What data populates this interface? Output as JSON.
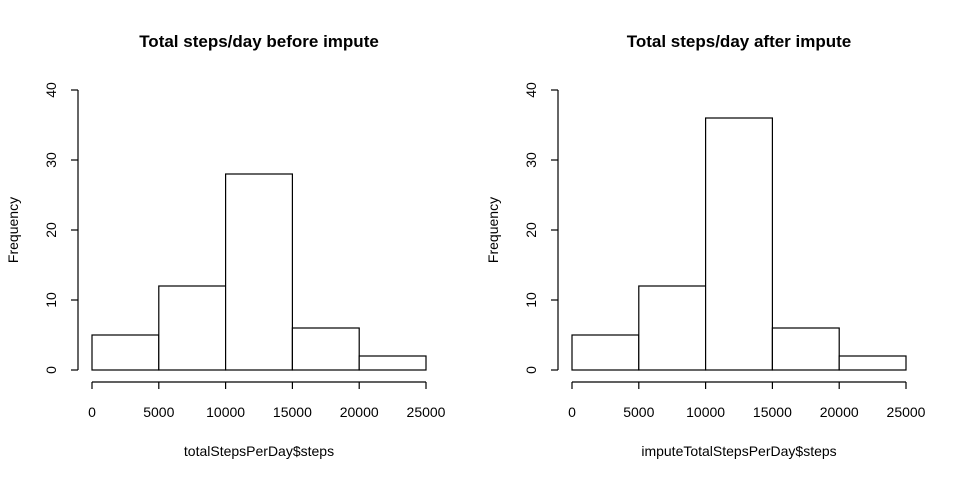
{
  "chart_data": [
    {
      "type": "bar",
      "title": "Total steps/day before impute",
      "xlabel": "totalStepsPerDay$steps",
      "ylabel": "Frequency",
      "bins": [
        [
          0,
          5000
        ],
        [
          5000,
          10000
        ],
        [
          10000,
          15000
        ],
        [
          15000,
          20000
        ],
        [
          20000,
          25000
        ]
      ],
      "values": [
        5,
        12,
        28,
        6,
        2
      ],
      "xlim": [
        0,
        25000
      ],
      "ylim": [
        0,
        40
      ],
      "xticks": [
        "0",
        "5000",
        "10000",
        "15000",
        "20000",
        "25000"
      ],
      "yticks": [
        "0",
        "10",
        "20",
        "30",
        "40"
      ],
      "grid": false,
      "bar_fill": "#ffffff",
      "bar_stroke": "#000000"
    },
    {
      "type": "bar",
      "title": "Total steps/day after impute",
      "xlabel": "imputeTotalStepsPerDay$steps",
      "ylabel": "Frequency",
      "bins": [
        [
          0,
          5000
        ],
        [
          5000,
          10000
        ],
        [
          10000,
          15000
        ],
        [
          15000,
          20000
        ],
        [
          20000,
          25000
        ]
      ],
      "values": [
        5,
        12,
        36,
        6,
        2
      ],
      "xlim": [
        0,
        25000
      ],
      "ylim": [
        0,
        40
      ],
      "xticks": [
        "0",
        "5000",
        "10000",
        "15000",
        "20000",
        "25000"
      ],
      "yticks": [
        "0",
        "10",
        "20",
        "30",
        "40"
      ],
      "grid": false,
      "bar_fill": "#ffffff",
      "bar_stroke": "#000000"
    }
  ]
}
